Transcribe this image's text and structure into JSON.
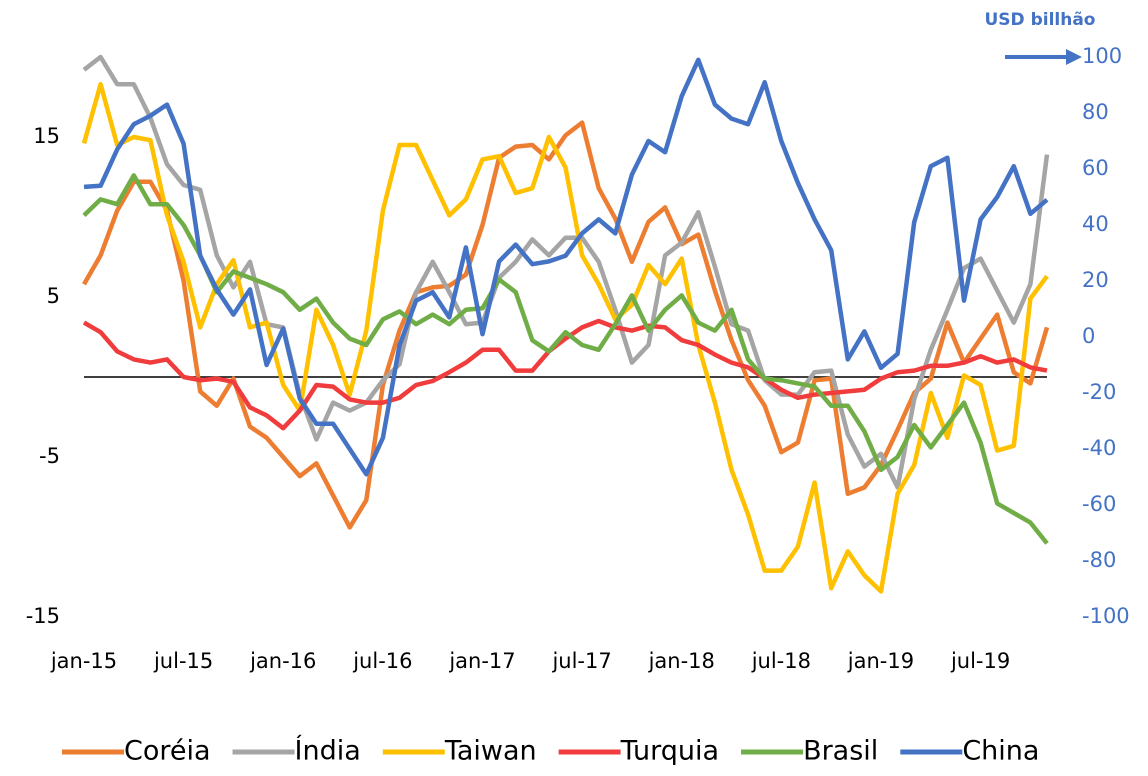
{
  "chart_data": {
    "type": "line",
    "y2_label": "USD billhão",
    "categories": [
      "jan-15",
      null,
      null,
      null,
      null,
      null,
      "jul-15",
      null,
      null,
      null,
      null,
      null,
      "jan-16",
      null,
      null,
      null,
      null,
      null,
      "jul-16",
      null,
      null,
      null,
      null,
      null,
      "jan-17",
      null,
      null,
      null,
      null,
      null,
      "jul-17",
      null,
      null,
      null,
      null,
      null,
      "jan-18",
      null,
      null,
      null,
      null,
      null,
      "jul-18",
      null,
      null,
      null,
      null,
      null,
      "jan-19",
      null,
      null,
      null,
      null,
      null,
      "jul-19",
      null,
      null,
      null,
      null
    ],
    "ylim": [
      -15,
      20
    ],
    "yticks": [
      -15,
      -5,
      5,
      15
    ],
    "y2lim": [
      -100,
      100
    ],
    "y2ticks": [
      -100,
      -80,
      -60,
      -40,
      -20,
      0,
      20,
      40,
      60,
      80,
      100
    ],
    "y2_color": "#4472c4",
    "legend": "bottom",
    "series": [
      {
        "name": "Coréia",
        "color": "#ed7d31",
        "values": [
          5.8,
          7.6,
          10.4,
          12.2,
          12.2,
          10.4,
          6,
          -0.9,
          -1.8,
          -0.1,
          -3.1,
          -3.8,
          -5,
          -6.2,
          -5.4,
          -7.4,
          -9.4,
          -7.7,
          -0.5,
          2.9,
          5.3,
          5.6,
          5.7,
          6.4,
          9.5,
          13.7,
          14.4,
          14.5,
          13.6,
          15.1,
          15.9,
          11.8,
          9.9,
          7.2,
          9.7,
          10.6,
          8.3,
          8.9,
          5.4,
          2.3,
          -0.2,
          -1.8,
          -4.7,
          -4.1,
          -0.2,
          -0.1,
          -7.3,
          -6.9,
          -5.5,
          -3.3,
          -1,
          -0.1,
          3.4,
          0.9,
          2.4,
          3.9,
          0.3,
          -0.4,
          3.1
        ]
      },
      {
        "name": "Índia",
        "color": "#a5a5a5",
        "values": [
          19.2,
          20,
          18.3,
          18.3,
          16.2,
          13.3,
          12,
          11.7,
          7.6,
          5.6,
          7.2,
          3.3,
          3.1,
          -1.1,
          -3.9,
          -1.6,
          -2.1,
          -1.6,
          -0.2,
          0.8,
          5.3,
          7.2,
          5.3,
          3.3,
          3.4,
          6.2,
          7.2,
          8.6,
          7.6,
          8.7,
          8.7,
          7.2,
          4.2,
          0.9,
          2,
          7.6,
          8.4,
          10.3,
          6.9,
          3.3,
          2.9,
          -0.2,
          -1.1,
          -1.1,
          0.3,
          0.4,
          -3.6,
          -5.6,
          -4.8,
          -6.9,
          -1.4,
          1.7,
          4.2,
          6.8,
          7.4,
          5.4,
          3.4,
          5.8,
          13.9
        ]
      },
      {
        "name": "Taiwan",
        "color": "#ffc000",
        "values": [
          14.6,
          18.3,
          14.5,
          15,
          14.8,
          10.1,
          7.2,
          3.1,
          5.8,
          7.3,
          3.1,
          3.4,
          -0.5,
          -2.1,
          4.2,
          2,
          -1.1,
          2.9,
          10.4,
          14.5,
          14.5,
          12.3,
          10.1,
          11.1,
          13.6,
          13.8,
          11.5,
          11.8,
          15,
          13.1,
          7.6,
          5.8,
          3.6,
          4.5,
          7,
          5.8,
          7.4,
          2,
          -1.6,
          -5.8,
          -8.6,
          -12.1,
          -12.1,
          -10.6,
          -6.6,
          -13.2,
          -10.9,
          -12.4,
          -13.4,
          -7.3,
          -5.5,
          -1,
          -3.8,
          0.1,
          -0.5,
          -4.6,
          -4.3,
          4.9,
          6.3
        ]
      },
      {
        "name": "Turquia",
        "color": "#f03c3c",
        "values": [
          3.4,
          2.8,
          1.6,
          1.1,
          0.9,
          1.1,
          0,
          -0.2,
          -0.1,
          -0.3,
          -1.9,
          -2.4,
          -3.2,
          -2.1,
          -0.5,
          -0.6,
          -1.4,
          -1.6,
          -1.6,
          -1.3,
          -0.5,
          -0.25,
          0.3,
          0.9,
          1.7,
          1.7,
          0.4,
          0.4,
          1.6,
          2.4,
          3.1,
          3.5,
          3.1,
          2.9,
          3.2,
          3.1,
          2.3,
          2,
          1.4,
          0.9,
          0.6,
          -0.1,
          -0.8,
          -1.3,
          -1.1,
          -1,
          -0.9,
          -0.8,
          -0.1,
          0.3,
          0.4,
          0.7,
          0.7,
          0.9,
          1.3,
          0.9,
          1.1,
          0.6,
          0.4
        ]
      },
      {
        "name": "Brasil",
        "color": "#70ad47",
        "values": [
          10.1,
          11.1,
          10.8,
          12.6,
          10.8,
          10.8,
          9.5,
          7.6,
          5.3,
          6.6,
          6.2,
          5.8,
          5.3,
          4.2,
          4.9,
          3.4,
          2.4,
          2,
          3.6,
          4.1,
          3.3,
          3.9,
          3.3,
          4.2,
          4.3,
          6.1,
          5.3,
          2.3,
          1.6,
          2.8,
          2,
          1.7,
          3.3,
          5.1,
          2.9,
          4.2,
          5.1,
          3.4,
          2.9,
          4.2,
          1.1,
          -0.1,
          -0.2,
          -0.4,
          -0.6,
          -1.8,
          -1.8,
          -3.4,
          -5.8,
          -5,
          -3,
          -4.4,
          -3,
          -1.6,
          -4.1,
          -7.9,
          -8.5,
          -9.1,
          -10.4
        ]
      },
      {
        "name": "China",
        "color": "#4472c4",
        "axis": "y2",
        "values": [
          53.6,
          54,
          67,
          76,
          79,
          83,
          69,
          29,
          17,
          8,
          17,
          -10,
          3,
          -22,
          -31,
          -31,
          -40,
          -49,
          -36,
          -3,
          13,
          16,
          7,
          32,
          1,
          27,
          33,
          26,
          27,
          29,
          37,
          42,
          37,
          58,
          70,
          66,
          86,
          99,
          83,
          78,
          76,
          91,
          70,
          55,
          42,
          31,
          -8,
          2,
          -11,
          -6,
          41,
          61,
          64,
          13,
          42,
          50,
          61,
          44,
          49
        ]
      }
    ]
  }
}
